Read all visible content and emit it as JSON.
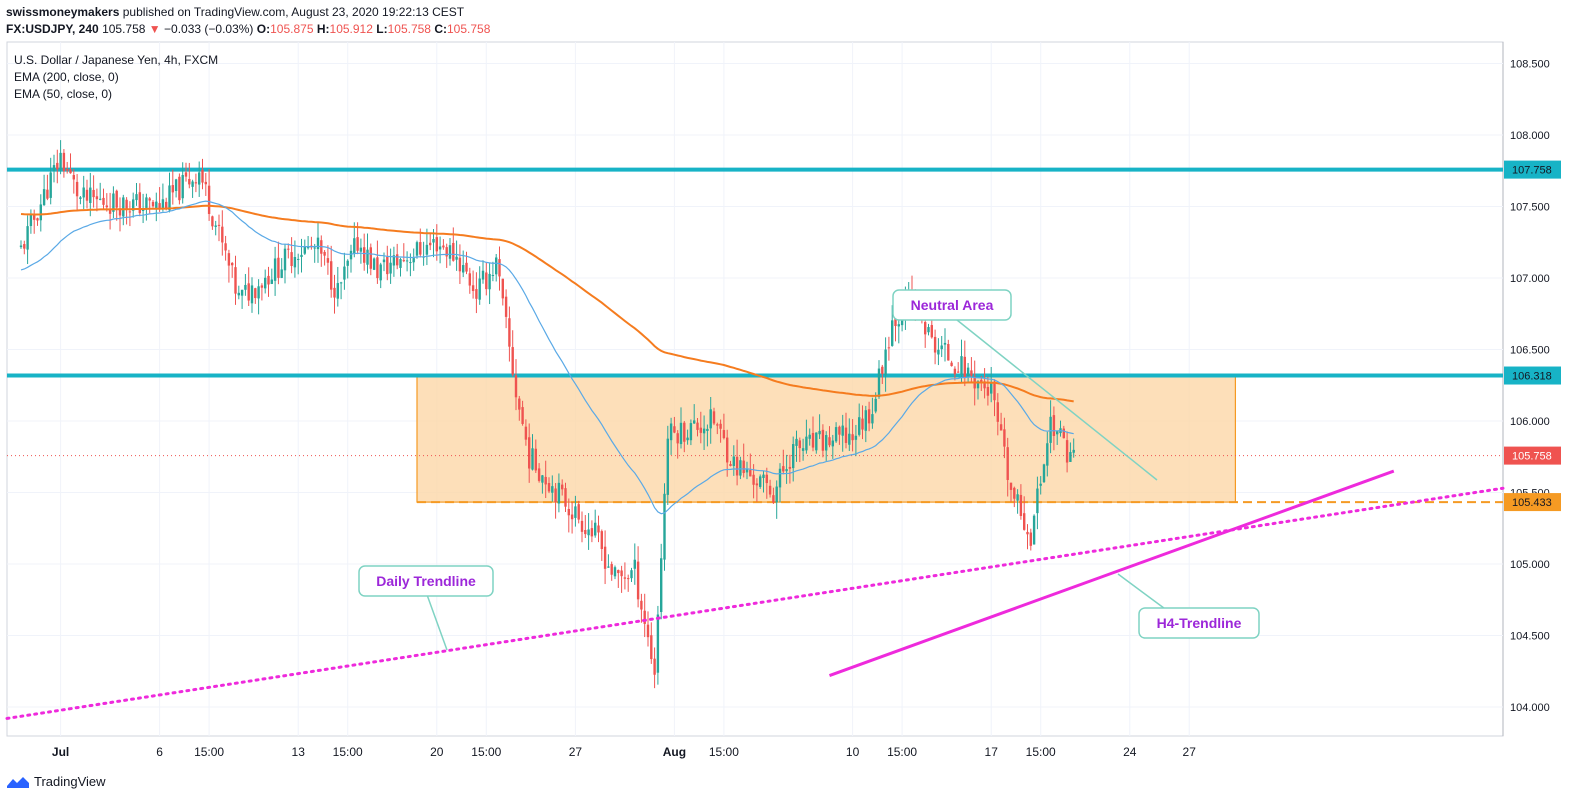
{
  "header": {
    "publisher_user": "swissmoneymakers",
    "publisher_text": "published on TradingView.com, August 23, 2020 19:22:13 CEST",
    "symbol": "FX:USDJPY, 240",
    "last": "105.758",
    "change_arrow": "▼",
    "change": "−0.033 (−0.03%)",
    "o_label": "O:",
    "o_value": "105.875",
    "h_label": "H:",
    "h_value": "105.912",
    "l_label": "L:",
    "l_value": "105.758",
    "c_label": "C:",
    "c_value": "105.758"
  },
  "footer": {
    "brand": "TradingView"
  },
  "colors": {
    "up": "#26a69a",
    "down": "#ef5350",
    "ema200": "#f57c1f",
    "ema50": "#5aa9e6",
    "level": "#17b3c6",
    "trend": "#ee2adc",
    "zone_fill": "#fcd7a8",
    "zone_line": "#f59a23",
    "callout_text": "#9c27d9",
    "callout_border": "#7fd3c3"
  },
  "chart_data": {
    "type": "candlestick",
    "title": "U.S. Dollar / Japanese Yen, 4h, FXCM",
    "legend": [
      "EMA (200, close, 0)",
      "EMA (50, close, 0)"
    ],
    "ylim": [
      103.75,
      108.75
    ],
    "x_tick_labels": [
      "Jul",
      "6",
      "15:00",
      "13",
      "15:00",
      "20",
      "15:00",
      "27",
      "Aug",
      "15:00",
      "10",
      "15:00",
      "17",
      "15:00",
      "24",
      "27"
    ],
    "y_tick_labels": [
      "108.500",
      "108.000",
      "107.500",
      "107.000",
      "106.500",
      "106.000",
      "105.500",
      "105.000",
      "104.500",
      "104.000"
    ],
    "last_price": 105.758,
    "horizontal_levels": [
      {
        "label": "107.758",
        "value": 107.758
      },
      {
        "label": "106.318",
        "value": 106.318
      },
      {
        "label": "105.433",
        "value": 105.433
      },
      {
        "label": "105.758",
        "value": 105.758
      }
    ],
    "zone": {
      "high": 106.318,
      "low": 105.433
    },
    "annotations": [
      "Neutral Area",
      "Daily Trendline",
      "H4-Trendline"
    ],
    "anchors": [
      [
        "06-29",
        107.2
      ],
      [
        "07-01",
        107.85
      ],
      [
        "07-02",
        107.55
      ],
      [
        "07-06",
        107.5
      ],
      [
        "07-08",
        107.75
      ],
      [
        "07-09",
        107.3
      ],
      [
        "07-10",
        106.85
      ],
      [
        "07-13",
        107.2
      ],
      [
        "07-14",
        107.2
      ],
      [
        "07-15",
        106.9
      ],
      [
        "07-16",
        107.25
      ],
      [
        "07-17",
        107.05
      ],
      [
        "07-20",
        107.25
      ],
      [
        "07-21",
        107.15
      ],
      [
        "07-22",
        106.9
      ],
      [
        "07-23",
        107.1
      ],
      [
        "07-24",
        106.2
      ],
      [
        "07-24 16h",
        105.75
      ],
      [
        "07-27",
        105.35
      ],
      [
        "07-28",
        105.2
      ],
      [
        "07-29",
        104.9
      ],
      [
        "07-30",
        104.95
      ],
      [
        "07-31",
        104.25
      ],
      [
        "07-31 16h",
        105.9
      ],
      [
        "08-03",
        106.0
      ],
      [
        "08-04",
        105.7
      ],
      [
        "08-05",
        105.6
      ],
      [
        "08-06",
        105.5
      ],
      [
        "08-07",
        105.8
      ],
      [
        "08-10",
        105.9
      ],
      [
        "08-11",
        106.1
      ],
      [
        "08-12",
        106.7
      ],
      [
        "08-13",
        106.85
      ],
      [
        "08-14",
        106.55
      ],
      [
        "08-17",
        106.2
      ],
      [
        "08-18",
        105.5
      ],
      [
        "08-19",
        105.2
      ],
      [
        "08-20",
        106.0
      ],
      [
        "08-21",
        105.758
      ]
    ]
  }
}
